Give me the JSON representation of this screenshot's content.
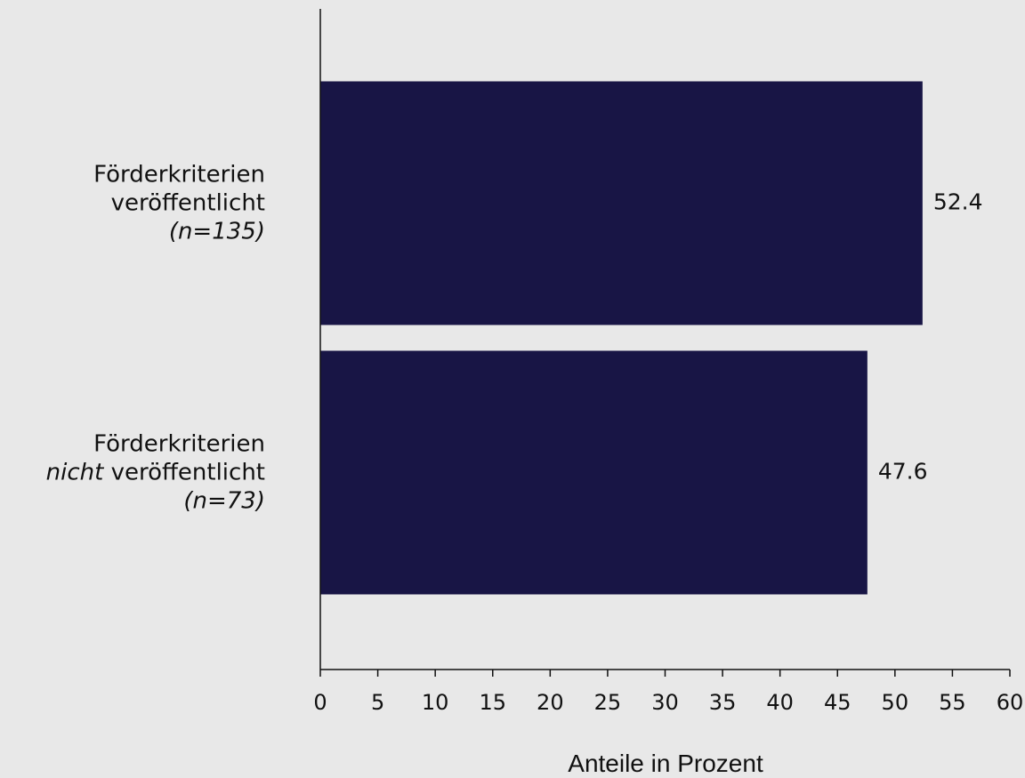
{
  "chart_data": {
    "type": "bar",
    "orientation": "horizontal",
    "categories": [
      {
        "lines": [
          [
            {
              "text": "Förderkriterien",
              "italic": false
            }
          ],
          [
            {
              "text": "veröffentlicht",
              "italic": false
            }
          ],
          [
            {
              "text": "(n=135)",
              "italic": true
            }
          ]
        ]
      },
      {
        "lines": [
          [
            {
              "text": "Förderkriterien",
              "italic": false
            }
          ],
          [
            {
              "text": "nicht",
              "italic": true
            },
            {
              "text": " veröffentlicht",
              "italic": false
            }
          ],
          [
            {
              "text": "(n=73)",
              "italic": true
            }
          ]
        ]
      }
    ],
    "values": [
      52.4,
      47.6
    ],
    "value_labels": [
      "52.4",
      "47.6"
    ],
    "xlabel": "Anteile in Prozent",
    "xlim": [
      0,
      60
    ],
    "xticks": [
      0,
      5,
      10,
      15,
      20,
      25,
      30,
      35,
      40,
      45,
      50,
      55,
      60
    ],
    "bar_color": "#181545",
    "grid": false,
    "legend": "none"
  }
}
